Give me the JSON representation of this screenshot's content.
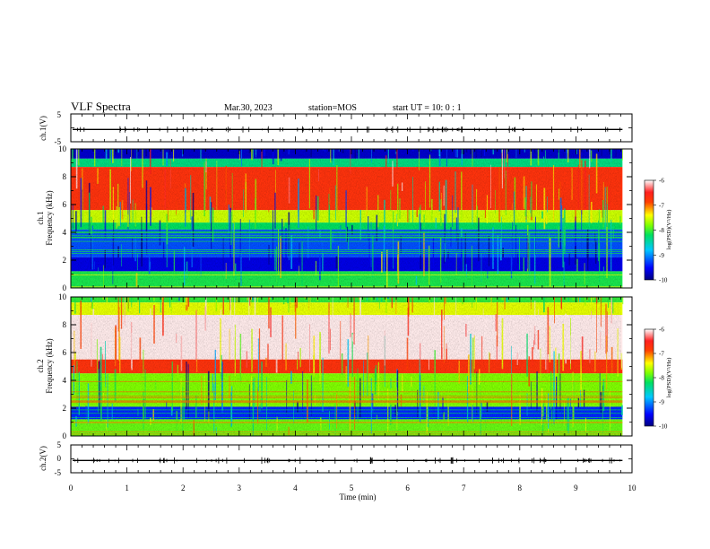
{
  "header": {
    "title": "VLF Spectra",
    "date": "Mar.30, 2023",
    "station": "station=MOS",
    "start_ut": "start  UT =   10: 0  : 1"
  },
  "chart_data": [
    {
      "type": "line",
      "panel": "ch1-waveform",
      "ylabel": "ch.1(V)",
      "ylim": [
        -5,
        5
      ],
      "yticks": [
        "5",
        "-5"
      ],
      "x_unit": "min",
      "xlim": [
        0,
        10
      ],
      "baseline_value": -0.6,
      "line_color": "#000000"
    },
    {
      "type": "heatmap",
      "panel": "ch1-spectrogram",
      "ylabel": [
        "ch.1",
        "Frequency (kHz)"
      ],
      "ylim": [
        0,
        10
      ],
      "yticks": [
        "0",
        "2",
        "4",
        "6",
        "8",
        "10"
      ],
      "xlim": [
        0,
        10
      ],
      "x_unit": "min",
      "data_extent_min": 9.83,
      "bands": [
        {
          "f_low": 9.3,
          "f_high": 10.0,
          "log_psd": -9.7
        },
        {
          "f_low": 8.7,
          "f_high": 9.3,
          "log_psd": -8.6
        },
        {
          "f_low": 5.6,
          "f_high": 8.7,
          "log_psd": -6.8
        },
        {
          "f_low": 4.7,
          "f_high": 5.6,
          "log_psd": -7.7
        },
        {
          "f_low": 4.2,
          "f_high": 4.7,
          "log_psd": -8.5
        },
        {
          "f_low": 2.2,
          "f_high": 4.2,
          "log_psd": -9.3
        },
        {
          "f_low": 1.2,
          "f_high": 2.2,
          "log_psd": -9.6
        },
        {
          "f_low": 0.0,
          "f_high": 1.2,
          "log_psd": -8.4
        }
      ],
      "colorbar": {
        "label": "log(PSD)(V²/Hz)",
        "min": -10,
        "max": -6,
        "ticks": [
          "-6",
          "-7",
          "-8",
          "-9",
          "-10"
        ]
      }
    },
    {
      "type": "heatmap",
      "panel": "ch2-spectrogram",
      "ylabel": [
        "ch.2",
        "Frequency (kHz)"
      ],
      "ylim": [
        0,
        10
      ],
      "yticks": [
        "0",
        "2",
        "4",
        "6",
        "8",
        "10"
      ],
      "xlim": [
        0,
        10
      ],
      "x_unit": "min",
      "data_extent_min": 9.83,
      "bands": [
        {
          "f_low": 9.6,
          "f_high": 10.0,
          "log_psd": -8.3
        },
        {
          "f_low": 8.7,
          "f_high": 9.6,
          "log_psd": -7.6
        },
        {
          "f_low": 5.5,
          "f_high": 8.7,
          "log_psd": -6.0
        },
        {
          "f_low": 4.5,
          "f_high": 5.5,
          "log_psd": -6.8
        },
        {
          "f_low": 2.1,
          "f_high": 4.5,
          "log_psd": -8.0
        },
        {
          "f_low": 1.2,
          "f_high": 2.1,
          "log_psd": -9.4
        },
        {
          "f_low": 0.0,
          "f_high": 1.2,
          "log_psd": -8.1
        }
      ],
      "colorbar": {
        "label": "log(PSD)(V²/Hz)",
        "min": -10,
        "max": -6,
        "ticks": [
          "-6",
          "-7",
          "-8",
          "-9",
          "-10"
        ]
      }
    },
    {
      "type": "line",
      "panel": "ch2-waveform",
      "ylabel": "ch.2(V)",
      "ylim": [
        -5,
        5
      ],
      "yticks": [
        "5",
        "0",
        "-5"
      ],
      "xlim": [
        0,
        10
      ],
      "xticks": [
        "0",
        "1",
        "2",
        "3",
        "4",
        "5",
        "6",
        "7",
        "8",
        "9",
        "10"
      ],
      "xlabel": "Time (min)",
      "baseline_value": -0.6,
      "line_color": "#000000"
    }
  ]
}
